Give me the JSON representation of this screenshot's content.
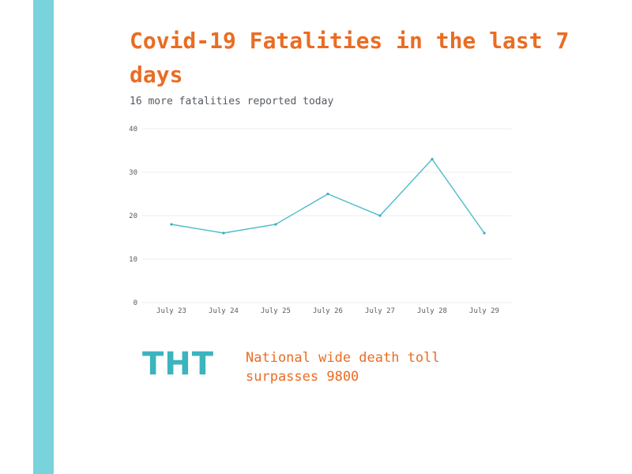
{
  "header": {
    "title": "Covid-19 Fatalities in the last 7 days",
    "subtitle": "16 more fatalities reported today"
  },
  "brand": {
    "logo_text": "THT",
    "headline": "National wide death toll surpasses 9800"
  },
  "colors": {
    "accent_stripe": "#79d3dc",
    "title": "#ea6c23",
    "line": "#4bbccb",
    "logo": "#3bb4bf"
  },
  "chart_data": {
    "type": "line",
    "categories": [
      "July 23",
      "July 24",
      "July 25",
      "July 26",
      "July 27",
      "July 28",
      "July 29"
    ],
    "series": [
      {
        "values": [
          18,
          16,
          18,
          25,
          20,
          33,
          16
        ]
      }
    ],
    "yticks": [
      0,
      10,
      20,
      30,
      40
    ],
    "ylim": [
      0,
      40
    ],
    "grid": true
  }
}
